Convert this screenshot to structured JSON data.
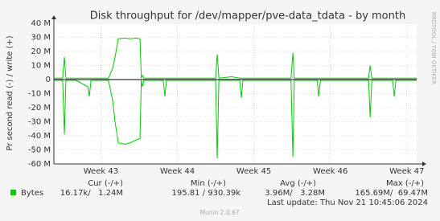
{
  "chart_data": {
    "type": "line",
    "title": "Disk throughput for /dev/mapper/pve-data_tdata - by month",
    "y_label": "Pr second read (-) / write (+)",
    "side_note": "RRDTOOL / TOBI OETIKER",
    "footer": "Munin 2.0.67",
    "last_update": "Last update: Thu Nov 21 10:45:06 2024",
    "grid": true,
    "xlim": [
      0,
      33.2
    ],
    "xticks": [
      {
        "value": 4.3,
        "label": "Week 43"
      },
      {
        "value": 11.3,
        "label": "Week 44"
      },
      {
        "value": 18.3,
        "label": "Week 45"
      },
      {
        "value": 25.3,
        "label": "Week 46"
      },
      {
        "value": 32.3,
        "label": "Week 47"
      }
    ],
    "ylim": [
      -60,
      40
    ],
    "yticks": [
      {
        "value": -60,
        "label": "-60 M"
      },
      {
        "value": -50,
        "label": "-50 M"
      },
      {
        "value": -40,
        "label": "-40 M"
      },
      {
        "value": -30,
        "label": "-30 M"
      },
      {
        "value": -20,
        "label": "-20 M"
      },
      {
        "value": -10,
        "label": "-10 M"
      },
      0,
      {
        "value": 10,
        "label": "10 M"
      },
      {
        "value": 20,
        "label": "20 M"
      },
      {
        "value": 30,
        "label": "30 M"
      },
      {
        "value": 40,
        "label": "40 M"
      }
    ],
    "x": [
      0,
      0.8,
      0.96,
      1.1,
      2.0,
      3.1,
      3.24,
      3.4,
      5.0,
      5.38,
      5.6,
      5.89,
      6.5,
      7.0,
      7.5,
      7.88,
      8.0,
      8.1,
      8.25,
      10.0,
      10.16,
      10.3,
      14.8,
      14.95,
      15.1,
      16.27,
      17.0,
      17.16,
      17.3,
      21.7,
      21.87,
      22.0,
      24.1,
      24.23,
      24.4,
      28.8,
      28.94,
      29.1,
      31.0,
      31.15,
      31.3,
      33.2
    ],
    "series": [
      {
        "name": "Bytes",
        "color": "#00cc00",
        "values": [
          1,
          1,
          16,
          1,
          1,
          1,
          1,
          1,
          1,
          8,
          16,
          29,
          29.5,
          29,
          29.5,
          29,
          1,
          3,
          1,
          1,
          1,
          1,
          1,
          18,
          1,
          2,
          1,
          1,
          1,
          1,
          19,
          1,
          1,
          1,
          1,
          1,
          10,
          1,
          1,
          1,
          1,
          1
        ]
      },
      {
        "color": "#00cc00",
        "values": [
          -0.5,
          -0.5,
          -39,
          -0.5,
          -0.5,
          -5,
          -12,
          -0.5,
          -0.5,
          -15,
          -30,
          -45,
          -46,
          -45,
          -43,
          -42,
          -0.5,
          -5,
          -0.5,
          -0.5,
          -12,
          -0.5,
          -0.5,
          -56,
          -0.5,
          -0.5,
          -0.5,
          -13,
          -0.5,
          -0.5,
          -55,
          -0.5,
          -0.5,
          -12,
          -0.5,
          -0.5,
          -27,
          -0.5,
          -0.5,
          -12,
          -0.5,
          -0.5
        ]
      }
    ],
    "legend_table": {
      "headers": [
        "Cur (-/+)",
        "Min (-/+)",
        "Avg (-/+)",
        "Max (-/+)"
      ],
      "row": [
        "16.17k/   1.24M",
        "195.81 / 930.39k",
        "3.96M/   3.28M",
        "165.69M/  69.47M"
      ]
    }
  }
}
